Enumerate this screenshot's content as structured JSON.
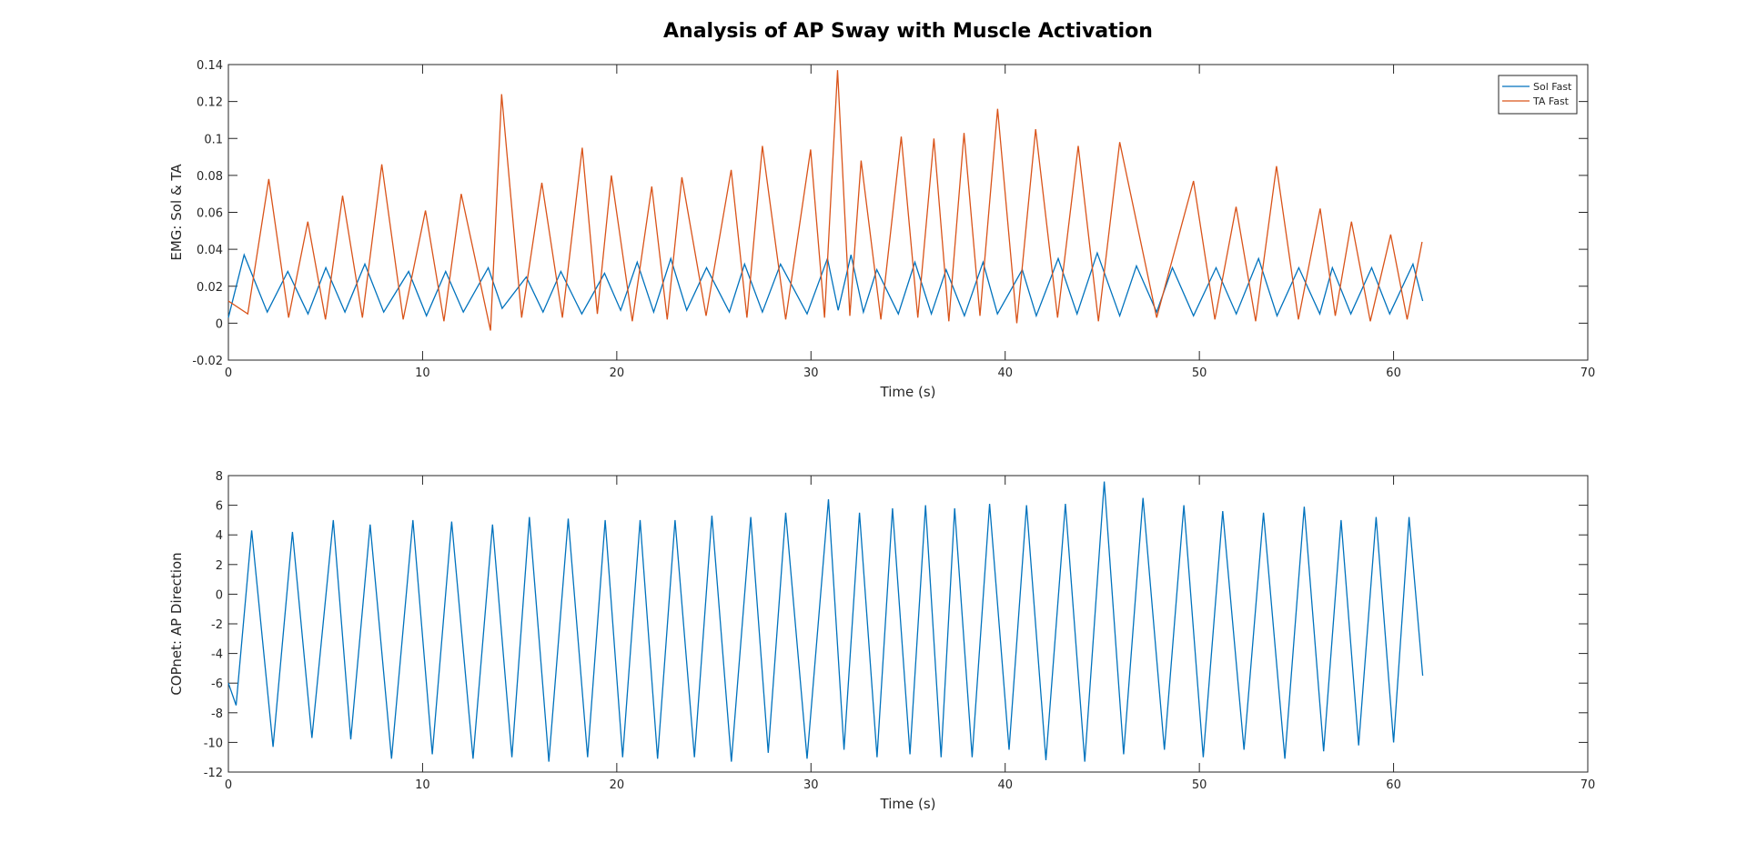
{
  "chart_data": [
    {
      "type": "line",
      "title": "Analysis of AP Sway with Muscle Activation",
      "x_label": "Time (s)",
      "y_label": "EMG: Sol & TA",
      "xlim": [
        0,
        70
      ],
      "xticks": [
        0,
        10,
        20,
        30,
        40,
        50,
        60,
        70
      ],
      "ylim": [
        -0.02,
        0.14
      ],
      "yticks": [
        -0.02,
        0,
        0.02,
        0.04,
        0.06,
        0.08,
        0.1,
        0.12,
        0.14
      ],
      "legend": "northeast",
      "series": [
        {
          "name": "Sol Fast",
          "color": "#0072BD",
          "x": [
            0,
            0.81,
            2.0,
            3.06,
            4.1,
            5.02,
            6.0,
            7.03,
            8.0,
            9.28,
            10.2,
            11.19,
            12.1,
            13.38,
            14.1,
            15.34,
            16.2,
            17.12,
            18.2,
            19.37,
            20.2,
            21.05,
            21.9,
            22.78,
            23.6,
            24.62,
            25.8,
            26.58,
            27.5,
            28.43,
            29.8,
            30.85,
            31.4,
            32.06,
            32.7,
            33.39,
            34.5,
            35.35,
            36.2,
            36.96,
            37.9,
            38.86,
            39.6,
            40.88,
            41.6,
            42.73,
            43.7,
            44.74,
            45.9,
            46.76,
            47.8,
            48.61,
            49.7,
            50.86,
            51.9,
            53.05,
            54.0,
            55.12,
            56.2,
            56.85,
            57.8,
            58.87,
            59.8,
            61.0,
            61.5
          ],
          "values": [
            0.003,
            0.037,
            0.006,
            0.028,
            0.005,
            0.03,
            0.006,
            0.032,
            0.006,
            0.028,
            0.004,
            0.028,
            0.006,
            0.03,
            0.008,
            0.025,
            0.006,
            0.028,
            0.005,
            0.027,
            0.007,
            0.033,
            0.006,
            0.035,
            0.007,
            0.03,
            0.006,
            0.032,
            0.006,
            0.032,
            0.005,
            0.035,
            0.007,
            0.037,
            0.006,
            0.029,
            0.005,
            0.033,
            0.005,
            0.029,
            0.004,
            0.033,
            0.005,
            0.029,
            0.004,
            0.035,
            0.005,
            0.038,
            0.004,
            0.031,
            0.006,
            0.03,
            0.004,
            0.03,
            0.005,
            0.035,
            0.004,
            0.03,
            0.005,
            0.03,
            0.005,
            0.03,
            0.005,
            0.032,
            0.012
          ]
        },
        {
          "name": "TA Fast",
          "color": "#D95319",
          "x": [
            0,
            1.0,
            2.08,
            3.1,
            4.09,
            5.0,
            5.88,
            6.9,
            7.9,
            9.0,
            10.15,
            11.1,
            11.99,
            13.5,
            14.07,
            15.1,
            16.14,
            17.2,
            18.22,
            19.0,
            19.72,
            20.8,
            21.8,
            22.6,
            23.35,
            24.6,
            25.89,
            26.7,
            27.5,
            28.7,
            29.98,
            30.7,
            31.37,
            32.0,
            32.58,
            33.6,
            34.65,
            35.5,
            36.33,
            37.1,
            37.88,
            38.7,
            39.61,
            40.6,
            41.57,
            42.7,
            43.76,
            44.8,
            45.9,
            47.8,
            49.7,
            50.8,
            51.89,
            52.9,
            53.97,
            55.1,
            56.22,
            57.0,
            57.83,
            58.8,
            59.85,
            60.7,
            61.47
          ],
          "values": [
            0.012,
            0.005,
            0.078,
            0.003,
            0.055,
            0.002,
            0.069,
            0.003,
            0.086,
            0.002,
            0.061,
            0.001,
            0.07,
            -0.004,
            0.124,
            0.003,
            0.076,
            0.003,
            0.095,
            0.005,
            0.08,
            0.001,
            0.074,
            0.002,
            0.079,
            0.004,
            0.083,
            0.003,
            0.096,
            0.002,
            0.094,
            0.003,
            0.137,
            0.004,
            0.088,
            0.002,
            0.101,
            0.003,
            0.1,
            0.001,
            0.103,
            0.004,
            0.116,
            0.0,
            0.105,
            0.003,
            0.096,
            0.001,
            0.098,
            0.003,
            0.077,
            0.002,
            0.063,
            0.001,
            0.085,
            0.002,
            0.062,
            0.004,
            0.055,
            0.001,
            0.048,
            0.002,
            0.044
          ]
        }
      ]
    },
    {
      "type": "line",
      "x_label": "Time (s)",
      "y_label": "COPnet: AP Direction",
      "xlim": [
        0,
        70
      ],
      "xticks": [
        0,
        10,
        20,
        30,
        40,
        50,
        60,
        70
      ],
      "ylim": [
        -12,
        8
      ],
      "yticks": [
        -12,
        -10,
        -8,
        -6,
        -4,
        -2,
        0,
        2,
        4,
        6,
        8
      ],
      "series": [
        {
          "color": "#0072BD",
          "x": [
            0,
            0.4,
            1.2,
            2.3,
            3.3,
            4.3,
            5.4,
            6.3,
            7.3,
            8.4,
            9.5,
            10.5,
            11.5,
            12.6,
            13.6,
            14.6,
            15.5,
            16.5,
            17.5,
            18.5,
            19.4,
            20.3,
            21.2,
            22.1,
            23.0,
            24.0,
            24.9,
            25.9,
            26.9,
            27.8,
            28.7,
            29.8,
            30.9,
            31.7,
            32.5,
            33.4,
            34.2,
            35.1,
            35.9,
            36.7,
            37.4,
            38.3,
            39.2,
            40.2,
            41.1,
            42.1,
            43.1,
            44.1,
            45.1,
            46.1,
            47.1,
            48.2,
            49.2,
            50.2,
            51.2,
            52.3,
            53.3,
            54.4,
            55.4,
            56.4,
            57.3,
            58.2,
            59.1,
            60.0,
            60.8,
            61.5
          ],
          "values": [
            -6,
            -7.5,
            4.3,
            -10.3,
            4.2,
            -9.7,
            5.0,
            -9.8,
            4.7,
            -11.1,
            5.0,
            -10.8,
            4.9,
            -11.1,
            4.7,
            -11.0,
            5.2,
            -11.3,
            5.1,
            -11.0,
            5.0,
            -11.0,
            5.0,
            -11.1,
            5.0,
            -11.0,
            5.3,
            -11.3,
            5.2,
            -10.7,
            5.5,
            -11.1,
            6.4,
            -10.5,
            5.5,
            -11.0,
            5.8,
            -10.8,
            6.0,
            -11.0,
            5.8,
            -11.0,
            6.1,
            -10.5,
            6.0,
            -11.2,
            6.1,
            -11.3,
            7.6,
            -10.8,
            6.5,
            -10.5,
            6.0,
            -11.0,
            5.6,
            -10.5,
            5.5,
            -11.1,
            5.9,
            -10.6,
            5.0,
            -10.2,
            5.2,
            -10.0,
            5.2,
            -5.5
          ]
        }
      ]
    }
  ]
}
